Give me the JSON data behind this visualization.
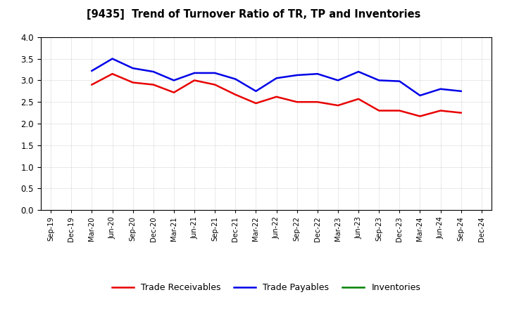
{
  "title": "[9435]  Trend of Turnover Ratio of TR, TP and Inventories",
  "x_labels": [
    "Sep-19",
    "Dec-19",
    "Mar-20",
    "Jun-20",
    "Sep-20",
    "Dec-20",
    "Mar-21",
    "Jun-21",
    "Sep-21",
    "Dec-21",
    "Mar-22",
    "Jun-22",
    "Sep-22",
    "Dec-22",
    "Mar-23",
    "Jun-23",
    "Sep-23",
    "Dec-23",
    "Mar-24",
    "Jun-24",
    "Sep-24",
    "Dec-24"
  ],
  "trade_receivables": [
    null,
    null,
    2.9,
    3.15,
    2.95,
    2.9,
    2.72,
    3.0,
    2.9,
    2.67,
    2.47,
    2.62,
    2.5,
    2.5,
    2.42,
    2.57,
    2.3,
    2.3,
    2.17,
    2.3,
    2.25,
    null
  ],
  "trade_payables": [
    null,
    null,
    3.22,
    3.5,
    3.28,
    3.2,
    3.0,
    3.17,
    3.17,
    3.03,
    2.75,
    3.05,
    3.12,
    3.15,
    3.0,
    3.2,
    3.0,
    2.98,
    2.65,
    2.8,
    2.75,
    null
  ],
  "inventories": [
    null,
    null,
    null,
    null,
    null,
    null,
    null,
    null,
    null,
    null,
    null,
    null,
    null,
    null,
    null,
    null,
    null,
    null,
    null,
    null,
    null,
    null
  ],
  "tr_color": "#e80000",
  "tp_color": "#0000e8",
  "inv_color": "#008000",
  "ylim": [
    0.0,
    4.0
  ],
  "yticks": [
    0.0,
    0.5,
    1.0,
    1.5,
    2.0,
    2.5,
    3.0,
    3.5,
    4.0
  ],
  "legend_labels": [
    "Trade Receivables",
    "Trade Payables",
    "Inventories"
  ],
  "background_color": "#ffffff",
  "grid_color": "#999999"
}
